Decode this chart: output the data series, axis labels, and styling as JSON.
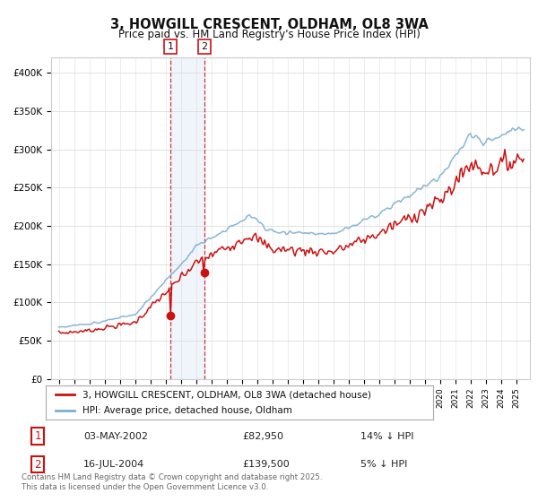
{
  "title": "3, HOWGILL CRESCENT, OLDHAM, OL8 3WA",
  "subtitle": "Price paid vs. HM Land Registry's House Price Index (HPI)",
  "ylim": [
    0,
    420000
  ],
  "yticks": [
    0,
    50000,
    100000,
    150000,
    200000,
    250000,
    300000,
    350000,
    400000
  ],
  "ytick_labels": [
    "£0",
    "£50K",
    "£100K",
    "£150K",
    "£200K",
    "£250K",
    "£300K",
    "£350K",
    "£400K"
  ],
  "hpi_color": "#7bafd4",
  "price_color": "#cc1111",
  "shade_color": "#d8e8f5",
  "vline_color": "#cc1111",
  "transaction1_date": 2002.33,
  "transaction1_price": 82950,
  "transaction2_date": 2004.54,
  "transaction2_price": 139500,
  "legend_label_price": "3, HOWGILL CRESCENT, OLDHAM, OL8 3WA (detached house)",
  "legend_label_hpi": "HPI: Average price, detached house, Oldham",
  "table_row1": [
    "1",
    "03-MAY-2002",
    "£82,950",
    "14% ↓ HPI"
  ],
  "table_row2": [
    "2",
    "16-JUL-2004",
    "£139,500",
    "5% ↓ HPI"
  ],
  "footnote": "Contains HM Land Registry data © Crown copyright and database right 2025.\nThis data is licensed under the Open Government Licence v3.0.",
  "background_color": "#ffffff",
  "grid_color": "#dddddd"
}
